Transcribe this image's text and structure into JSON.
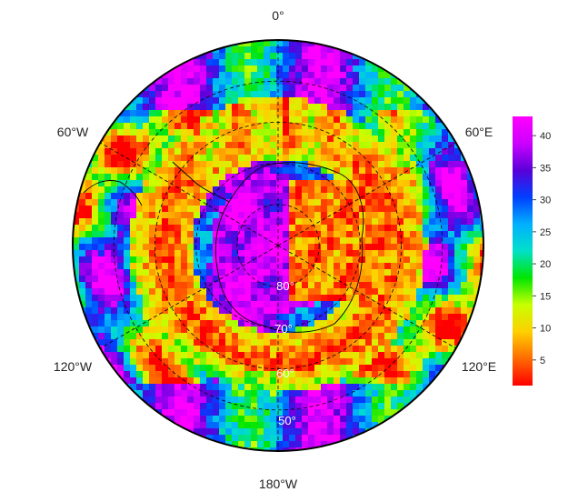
{
  "map": {
    "projection": "south polar stereographic",
    "longitude_labels": {
      "top": "0°",
      "upper_left": "60°W",
      "upper_right": "60°E",
      "lower_left": "120°W",
      "lower_right": "120°E",
      "bottom": "180°W"
    },
    "latitude_labels": [
      "80°",
      "70°",
      "60°",
      "50°"
    ],
    "graticule_latitudes": [
      80,
      70,
      60,
      50
    ],
    "graticule_longitudes": [
      0,
      60,
      120,
      180,
      240,
      300
    ],
    "outer_latitude": 40,
    "colors": {
      "ring": "#000000",
      "graticule": "#000000",
      "coastline": "#000000"
    }
  },
  "colorbar": {
    "ticks": [
      "5",
      "10",
      "15",
      "20",
      "25",
      "30",
      "35",
      "40"
    ],
    "tick_values": [
      5,
      10,
      15,
      20,
      25,
      30,
      35,
      40
    ],
    "min": 1,
    "max": 43,
    "palette": [
      "#ff0000",
      "#ff6a00",
      "#ffd000",
      "#c8ff00",
      "#00e600",
      "#00e0c8",
      "#00b0ff",
      "#0040ff",
      "#5a00d8",
      "#cc00ff",
      "#ff00ff"
    ]
  },
  "field_summary": {
    "antarctic_interior": "high (~38-43)",
    "subpolar_band": "low (~1-8)",
    "outer_ring": "mixed (~10-43)"
  }
}
